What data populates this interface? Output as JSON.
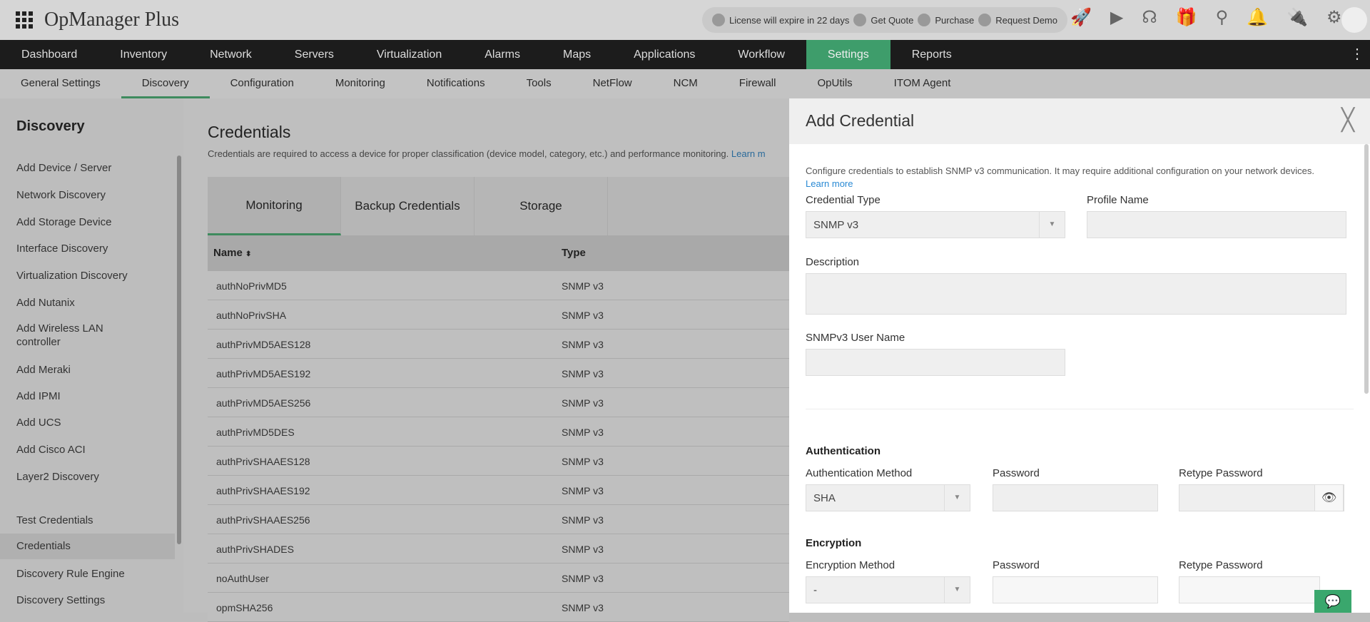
{
  "header": {
    "app_title": "OpManager Plus",
    "license": "License will expire in 22 days",
    "get_quote": "Get Quote",
    "purchase": "Purchase",
    "request_demo": "Request Demo"
  },
  "nav": [
    "Dashboard",
    "Inventory",
    "Network",
    "Servers",
    "Virtualization",
    "Alarms",
    "Maps",
    "Applications",
    "Workflow",
    "Settings",
    "Reports"
  ],
  "subnav": [
    "General Settings",
    "Discovery",
    "Configuration",
    "Monitoring",
    "Notifications",
    "Tools",
    "NetFlow",
    "NCM",
    "Firewall",
    "OpUtils",
    "ITOM Agent"
  ],
  "sidebar": {
    "title": "Discovery",
    "items": [
      "Add Device / Server",
      "Network Discovery",
      "Add Storage Device",
      "Interface Discovery",
      "Virtualization Discovery",
      "Add Nutanix",
      "Add Wireless LAN controller",
      "Add Meraki",
      "Add IPMI",
      "Add UCS",
      "Add Cisco ACI",
      "Layer2 Discovery",
      "Test Credentials",
      "Credentials",
      "Discovery Rule Engine",
      "Discovery Settings"
    ]
  },
  "main": {
    "title": "Credentials",
    "desc": "Credentials are required to access a device for proper classification (device model, category, etc.) and performance monitoring.",
    "learn": "Learn m",
    "tabs": [
      "Monitoring",
      "Backup Credentials",
      "Storage"
    ],
    "columns": [
      "Name",
      "Type"
    ],
    "rows": [
      [
        "authNoPrivMD5",
        "SNMP v3"
      ],
      [
        "authNoPrivSHA",
        "SNMP v3"
      ],
      [
        "authPrivMD5AES128",
        "SNMP v3"
      ],
      [
        "authPrivMD5AES192",
        "SNMP v3"
      ],
      [
        "authPrivMD5AES256",
        "SNMP v3"
      ],
      [
        "authPrivMD5DES",
        "SNMP v3"
      ],
      [
        "authPrivSHAAES128",
        "SNMP v3"
      ],
      [
        "authPrivSHAAES192",
        "SNMP v3"
      ],
      [
        "authPrivSHAAES256",
        "SNMP v3"
      ],
      [
        "authPrivSHADES",
        "SNMP v3"
      ],
      [
        "noAuthUser",
        "SNMP v3"
      ],
      [
        "opmSHA256",
        "SNMP v3"
      ]
    ]
  },
  "panel": {
    "title": "Add Credential",
    "desc": "Configure credentials to establish SNMP v3 communication. It may require additional configuration on your network devices.",
    "learn_more": "Learn more",
    "credential_type_label": "Credential Type",
    "credential_type": "SNMP v3",
    "profile_name_label": "Profile Name",
    "profile_name": "",
    "description_label": "Description",
    "user_name_label": "SNMPv3 User Name",
    "auth_section": "Authentication",
    "auth_method_label": "Authentication Method",
    "auth_method": "SHA",
    "password_label": "Password",
    "retype_label": "Retype Password",
    "enc_section": "Encryption",
    "enc_method_label": "Encryption Method",
    "enc_method": "-"
  },
  "colors": {
    "accent": "#4cbf86",
    "nav_bg": "#1c1c1c"
  }
}
